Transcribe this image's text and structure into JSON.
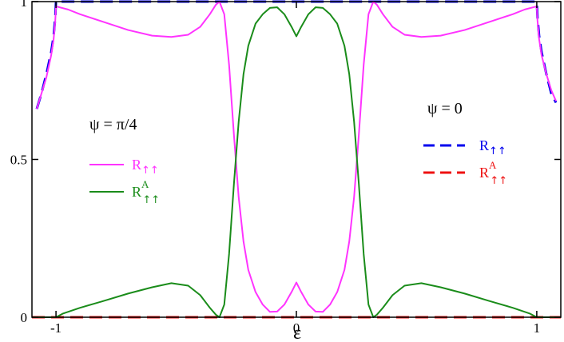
{
  "chart_data": {
    "type": "line",
    "title": "",
    "xlabel": "ε",
    "ylabel": "",
    "xlim": [
      -1.1,
      1.1
    ],
    "ylim": [
      0,
      1
    ],
    "x_ticks": [
      -1,
      0,
      1
    ],
    "x_tick_labels": [
      "-1",
      "0",
      "1"
    ],
    "y_ticks": [
      0,
      0.5,
      1
    ],
    "y_tick_labels": [
      "0",
      "0.5",
      "1"
    ],
    "grid": false,
    "annotations": [
      {
        "text": "ψ = π/4",
        "refers_to": "left legend group"
      },
      {
        "text": "ψ = 0",
        "refers_to": "right legend group"
      }
    ],
    "legends": [
      {
        "group": "ψ = π/4",
        "placement": "center-left",
        "entries": [
          {
            "base": "R",
            "sup": "",
            "sub": "↑↑",
            "color": "#ff33ff",
            "dash": "solid"
          },
          {
            "base": "R",
            "sup": "A",
            "sub": "↑↑",
            "color": "#1a8c1a",
            "dash": "solid"
          }
        ]
      },
      {
        "group": "ψ = 0",
        "placement": "center-right",
        "entries": [
          {
            "base": "R",
            "sup": "",
            "sub": "↑↑",
            "color": "#0000ee",
            "dash": "dashed"
          },
          {
            "base": "R",
            "sup": "A",
            "sub": "↑↑",
            "color": "#ee1111",
            "dash": "dashed"
          }
        ]
      }
    ],
    "series": [
      {
        "legend_group": "ψ = 0",
        "legend_index": 0,
        "color": "#0000ee",
        "dash": "dashed",
        "points": [
          [
            -1.08,
            0.66
          ],
          [
            -1.06,
            0.71
          ],
          [
            -1.04,
            0.77
          ],
          [
            -1.02,
            0.84
          ],
          [
            -1.01,
            0.89
          ],
          [
            -1.003,
            0.95
          ],
          [
            -1.0,
            1.0
          ],
          [
            1.0,
            1.0
          ],
          [
            1.003,
            0.95
          ],
          [
            1.01,
            0.89
          ],
          [
            1.02,
            0.84
          ],
          [
            1.04,
            0.77
          ],
          [
            1.06,
            0.71
          ],
          [
            1.08,
            0.68
          ]
        ]
      },
      {
        "legend_group": "ψ = 0",
        "legend_index": 1,
        "color": "#ee1111",
        "dash": "dashed",
        "points": [
          [
            -1.1,
            0.0
          ],
          [
            1.1,
            0.0
          ]
        ]
      },
      {
        "legend_group": "ψ = π/4",
        "legend_index": 0,
        "color": "#ff33ff",
        "dash": "solid",
        "points": [
          [
            -1.08,
            0.66
          ],
          [
            -1.06,
            0.71
          ],
          [
            -1.04,
            0.76
          ],
          [
            -1.02,
            0.83
          ],
          [
            -1.01,
            0.88
          ],
          [
            -1.003,
            0.94
          ],
          [
            -1.0,
            0.985
          ],
          [
            -0.95,
            0.975
          ],
          [
            -0.9,
            0.96
          ],
          [
            -0.8,
            0.935
          ],
          [
            -0.7,
            0.91
          ],
          [
            -0.6,
            0.892
          ],
          [
            -0.52,
            0.888
          ],
          [
            -0.45,
            0.895
          ],
          [
            -0.4,
            0.92
          ],
          [
            -0.36,
            0.96
          ],
          [
            -0.335,
            0.99
          ],
          [
            -0.32,
            1.0
          ],
          [
            -0.3,
            0.96
          ],
          [
            -0.28,
            0.8
          ],
          [
            -0.26,
            0.58
          ],
          [
            -0.24,
            0.38
          ],
          [
            -0.22,
            0.24
          ],
          [
            -0.2,
            0.15
          ],
          [
            -0.17,
            0.08
          ],
          [
            -0.14,
            0.04
          ],
          [
            -0.11,
            0.017
          ],
          [
            -0.08,
            0.018
          ],
          [
            -0.05,
            0.04
          ],
          [
            -0.02,
            0.08
          ],
          [
            0.0,
            0.11
          ],
          [
            0.02,
            0.08
          ],
          [
            0.05,
            0.04
          ],
          [
            0.08,
            0.018
          ],
          [
            0.11,
            0.017
          ],
          [
            0.14,
            0.04
          ],
          [
            0.17,
            0.08
          ],
          [
            0.2,
            0.15
          ],
          [
            0.22,
            0.24
          ],
          [
            0.24,
            0.38
          ],
          [
            0.26,
            0.58
          ],
          [
            0.28,
            0.8
          ],
          [
            0.3,
            0.96
          ],
          [
            0.32,
            1.0
          ],
          [
            0.335,
            0.99
          ],
          [
            0.36,
            0.96
          ],
          [
            0.4,
            0.92
          ],
          [
            0.45,
            0.895
          ],
          [
            0.52,
            0.888
          ],
          [
            0.6,
            0.892
          ],
          [
            0.7,
            0.91
          ],
          [
            0.8,
            0.935
          ],
          [
            0.9,
            0.96
          ],
          [
            0.95,
            0.975
          ],
          [
            1.0,
            0.985
          ],
          [
            1.003,
            0.94
          ],
          [
            1.01,
            0.88
          ],
          [
            1.02,
            0.83
          ],
          [
            1.04,
            0.77
          ],
          [
            1.06,
            0.72
          ],
          [
            1.08,
            0.685
          ]
        ]
      },
      {
        "legend_group": "ψ = π/4",
        "legend_index": 1,
        "color": "#1a8c1a",
        "dash": "solid",
        "points": [
          [
            -1.1,
            0.0
          ],
          [
            -1.0,
            0.0
          ],
          [
            -0.97,
            0.012
          ],
          [
            -0.9,
            0.03
          ],
          [
            -0.8,
            0.052
          ],
          [
            -0.7,
            0.075
          ],
          [
            -0.6,
            0.095
          ],
          [
            -0.52,
            0.108
          ],
          [
            -0.45,
            0.1
          ],
          [
            -0.4,
            0.07
          ],
          [
            -0.36,
            0.03
          ],
          [
            -0.335,
            0.008
          ],
          [
            -0.32,
            0.0
          ],
          [
            -0.3,
            0.04
          ],
          [
            -0.28,
            0.2
          ],
          [
            -0.26,
            0.42
          ],
          [
            -0.24,
            0.62
          ],
          [
            -0.22,
            0.77
          ],
          [
            -0.2,
            0.86
          ],
          [
            -0.17,
            0.93
          ],
          [
            -0.14,
            0.96
          ],
          [
            -0.11,
            0.98
          ],
          [
            -0.08,
            0.982
          ],
          [
            -0.05,
            0.96
          ],
          [
            -0.02,
            0.92
          ],
          [
            0.0,
            0.89
          ],
          [
            0.02,
            0.92
          ],
          [
            0.05,
            0.96
          ],
          [
            0.08,
            0.982
          ],
          [
            0.11,
            0.98
          ],
          [
            0.14,
            0.96
          ],
          [
            0.17,
            0.93
          ],
          [
            0.2,
            0.86
          ],
          [
            0.22,
            0.77
          ],
          [
            0.24,
            0.62
          ],
          [
            0.26,
            0.42
          ],
          [
            0.28,
            0.2
          ],
          [
            0.3,
            0.04
          ],
          [
            0.32,
            0.0
          ],
          [
            0.335,
            0.008
          ],
          [
            0.36,
            0.03
          ],
          [
            0.4,
            0.07
          ],
          [
            0.45,
            0.1
          ],
          [
            0.52,
            0.108
          ],
          [
            0.6,
            0.095
          ],
          [
            0.7,
            0.075
          ],
          [
            0.8,
            0.052
          ],
          [
            0.9,
            0.03
          ],
          [
            0.97,
            0.012
          ],
          [
            1.0,
            0.0
          ],
          [
            1.1,
            0.0
          ]
        ]
      }
    ]
  }
}
